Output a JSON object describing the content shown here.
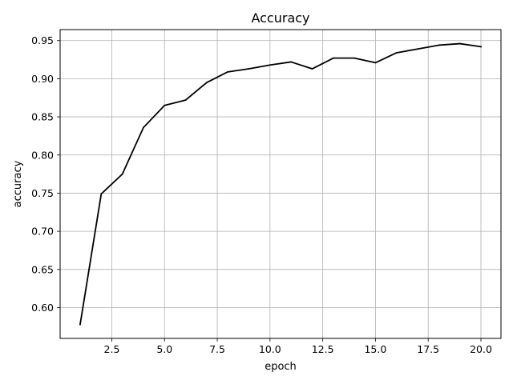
{
  "chart_data": {
    "type": "line",
    "title": "Accuracy",
    "xlabel": "epoch",
    "ylabel": "accuracy",
    "x": [
      1,
      2,
      3,
      4,
      5,
      6,
      7,
      8,
      9,
      10,
      11,
      12,
      13,
      14,
      15,
      16,
      17,
      18,
      19,
      20
    ],
    "series": [
      {
        "values": [
          0.578,
          0.749,
          0.775,
          0.836,
          0.865,
          0.872,
          0.895,
          0.909,
          0.913,
          0.918,
          0.922,
          0.913,
          0.927,
          0.927,
          0.921,
          0.934,
          0.939,
          0.944,
          0.946,
          0.942
        ],
        "color": "#000000"
      }
    ],
    "xlim": [
      0.05,
      20.95
    ],
    "ylim": [
      0.5596,
      0.9644
    ],
    "xticks": [
      2.5,
      5.0,
      7.5,
      10.0,
      12.5,
      15.0,
      17.5,
      20.0
    ],
    "xtick_labels": [
      "2.5",
      "5.0",
      "7.5",
      "10.0",
      "12.5",
      "15.0",
      "17.5",
      "20.0"
    ],
    "yticks": [
      0.6,
      0.65,
      0.7,
      0.75,
      0.8,
      0.85,
      0.9,
      0.95
    ],
    "ytick_labels": [
      "0.60",
      "0.65",
      "0.70",
      "0.75",
      "0.80",
      "0.85",
      "0.90",
      "0.95"
    ],
    "grid": true,
    "grid_color": "#b0b0b0",
    "axes_color": "#000000",
    "legend": "none"
  }
}
